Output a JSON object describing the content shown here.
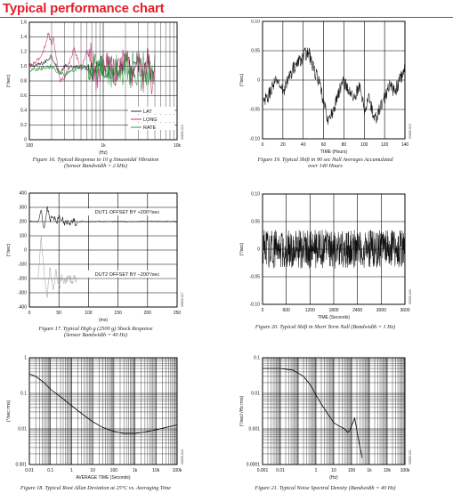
{
  "header": {
    "title": "Typical performance chart"
  },
  "chart_data": [
    {
      "id": "c16",
      "type": "line",
      "caption": "Figure 16. Typical Response to 10 g Sinusoidal Vibration\n(Sensor Bandwidth = 2 kHz)",
      "side_id": "05855-016",
      "xlabel": "(Hz)",
      "ylabel": "(°/sec)",
      "xscale": "log",
      "xlim": [
        100,
        10000
      ],
      "ylim": [
        0,
        1.6
      ],
      "xticks": [
        {
          "v": 100,
          "t": "100"
        },
        {
          "v": 1000,
          "t": "1k"
        },
        {
          "v": 10000,
          "t": "10k"
        }
      ],
      "yticks": [
        {
          "v": 0,
          "t": "0"
        },
        {
          "v": 0.2,
          "t": "0.2"
        },
        {
          "v": 0.4,
          "t": "0.4"
        },
        {
          "v": 0.6,
          "t": "0.6"
        },
        {
          "v": 0.8,
          "t": "0.8"
        },
        {
          "v": 1.0,
          "t": "1.0"
        },
        {
          "v": 1.2,
          "t": "1.2"
        },
        {
          "v": 1.4,
          "t": "1.4"
        },
        {
          "v": 1.6,
          "t": "1.6"
        }
      ],
      "grid": true,
      "legend_position": "lower-right",
      "series": [
        {
          "name": "LAT",
          "color": "#2f2f2f",
          "x": [
            100,
            130,
            160,
            180,
            200,
            230,
            260,
            300,
            400,
            500,
            700,
            1000,
            1500,
            2000,
            2500,
            3000,
            3500,
            4000,
            4500,
            5000
          ],
          "y": [
            1.0,
            1.02,
            1.05,
            1.1,
            1.15,
            1.0,
            0.9,
            1.0,
            0.98,
            1.0,
            0.95,
            1.02,
            0.9,
            1.05,
            0.85,
            1.1,
            0.8,
            1.12,
            0.82,
            1.0
          ]
        },
        {
          "name": "LONG",
          "color": "#c0306a",
          "x": [
            100,
            120,
            140,
            160,
            180,
            200,
            210,
            230,
            260,
            300,
            350,
            400,
            500,
            600,
            700,
            800,
            1000,
            1200,
            1500,
            2000,
            2500,
            3000,
            3500,
            4000,
            4500,
            5000
          ],
          "y": [
            1.0,
            1.05,
            1.12,
            1.25,
            1.45,
            1.3,
            1.4,
            1.15,
            0.8,
            0.85,
            1.05,
            1.25,
            0.95,
            1.2,
            1.15,
            0.85,
            1.0,
            1.1,
            0.9,
            1.15,
            0.85,
            1.15,
            0.8,
            1.1,
            0.75,
            0.95
          ]
        },
        {
          "name": "RATE",
          "color": "#2e9a45",
          "x": [
            100,
            150,
            200,
            250,
            300,
            400,
            500,
            700,
            1000,
            1300,
            1500,
            1800,
            2000,
            2300,
            2500,
            2800,
            3000,
            3300,
            3500,
            4000,
            4500,
            5000
          ],
          "y": [
            0.95,
            0.98,
            1.0,
            0.92,
            0.88,
            0.95,
            1.0,
            0.98,
            1.0,
            0.85,
            1.1,
            0.8,
            1.12,
            0.78,
            1.1,
            0.82,
            1.05,
            0.8,
            1.08,
            0.85,
            1.0,
            0.9
          ]
        }
      ]
    },
    {
      "id": "c19",
      "type": "line",
      "caption": "Figure 19. Typical Shift in 90 sec Null Averages Accumulated\nover 140 Hours",
      "side_id": "05855-019",
      "xlabel": "TIME (Hours)",
      "ylabel": "(°/sec)",
      "xlim": [
        0,
        140
      ],
      "ylim": [
        -0.1,
        0.1
      ],
      "xticks": [
        {
          "v": 0,
          "t": "0"
        },
        {
          "v": 20,
          "t": "20"
        },
        {
          "v": 40,
          "t": "40"
        },
        {
          "v": 60,
          "t": "60"
        },
        {
          "v": 80,
          "t": "80"
        },
        {
          "v": 100,
          "t": "100"
        },
        {
          "v": 120,
          "t": "120"
        },
        {
          "v": 140,
          "t": "140"
        }
      ],
      "yticks": [
        {
          "v": -0.1,
          "t": "-0.10"
        },
        {
          "v": -0.05,
          "t": "-0.05"
        },
        {
          "v": 0,
          "t": "0"
        },
        {
          "v": 0.05,
          "t": "0.05"
        },
        {
          "v": 0.1,
          "t": "0.10"
        }
      ],
      "grid": true,
      "series": [
        {
          "name": "",
          "color": "#111111",
          "x": [
            0,
            5,
            10,
            15,
            20,
            25,
            30,
            35,
            40,
            45,
            50,
            55,
            60,
            65,
            70,
            75,
            80,
            85,
            90,
            95,
            100,
            105,
            110,
            115,
            120,
            125,
            130,
            135,
            140
          ],
          "y": [
            -0.04,
            -0.03,
            -0.01,
            0.0,
            -0.02,
            0.0,
            0.02,
            0.03,
            0.04,
            0.05,
            0.02,
            0.0,
            -0.04,
            -0.07,
            -0.05,
            -0.02,
            0.0,
            -0.02,
            -0.03,
            -0.01,
            -0.05,
            -0.03,
            -0.07,
            -0.05,
            -0.03,
            -0.01,
            -0.02,
            0.0,
            0.02
          ]
        }
      ]
    },
    {
      "id": "c17",
      "type": "line",
      "caption": "Figure 17. Typical High g (2500 g) Shock Response\n(Sensor Bandwidth = 40 Hz)",
      "side_id": "05855-017",
      "xlabel": "(ms)",
      "ylabel": "(°/sec)",
      "xlim": [
        0,
        250
      ],
      "ylim": [
        -400,
        400
      ],
      "xticks": [
        {
          "v": 0,
          "t": "0"
        },
        {
          "v": 50,
          "t": "50"
        },
        {
          "v": 100,
          "t": "100"
        },
        {
          "v": 150,
          "t": "150"
        },
        {
          "v": 200,
          "t": "200"
        },
        {
          "v": 250,
          "t": "250"
        }
      ],
      "yticks": [
        {
          "v": -400,
          "t": "-400"
        },
        {
          "v": -300,
          "t": "-300"
        },
        {
          "v": -200,
          "t": "-200"
        },
        {
          "v": -100,
          "t": "-100"
        },
        {
          "v": 0,
          "t": "0"
        },
        {
          "v": 100,
          "t": "100"
        },
        {
          "v": 200,
          "t": "200"
        },
        {
          "v": 300,
          "t": "300"
        },
        {
          "v": 400,
          "t": "400"
        }
      ],
      "grid": true,
      "annotations": [
        "DUT1 OFFSET BY +200°/sec",
        "DUT2 OFFSET BY −200°/sec"
      ],
      "series": [
        {
          "name": "",
          "color": "#111111",
          "x": [
            0,
            15,
            20,
            25,
            30,
            35,
            40,
            45,
            50,
            55,
            60,
            70,
            80,
            250
          ],
          "y": [
            200,
            200,
            290,
            140,
            300,
            220,
            260,
            180,
            240,
            210,
            200,
            200,
            200,
            200
          ]
        },
        {
          "name": "",
          "color": "#a8a8a8",
          "x": [
            0,
            15,
            20,
            25,
            30,
            35,
            40,
            45,
            50,
            55,
            60,
            65,
            70,
            80,
            90,
            250
          ],
          "y": [
            -200,
            -200,
            100,
            -180,
            -320,
            -120,
            -280,
            -150,
            -260,
            -180,
            -230,
            -190,
            -210,
            -200,
            -200,
            -200
          ]
        }
      ]
    },
    {
      "id": "c20",
      "type": "line",
      "caption": "Figure 20. Typical Shift in Short Term Null (Bandwidth = 1 Hz)",
      "side_id": "05855-020",
      "xlabel": "TIME (Seconds)",
      "ylabel": "(°/sec)",
      "xlim": [
        0,
        3600
      ],
      "ylim": [
        -0.1,
        0.1
      ],
      "xticks": [
        {
          "v": 0,
          "t": "0"
        },
        {
          "v": 600,
          "t": "600"
        },
        {
          "v": 1200,
          "t": "1200"
        },
        {
          "v": 1800,
          "t": "1800"
        },
        {
          "v": 2400,
          "t": "2400"
        },
        {
          "v": 3000,
          "t": "3000"
        },
        {
          "v": 3600,
          "t": "3600"
        }
      ],
      "yticks": [
        {
          "v": -0.1,
          "t": "-0.10"
        },
        {
          "v": -0.05,
          "t": "-0.05"
        },
        {
          "v": 0,
          "t": "0"
        },
        {
          "v": 0.05,
          "t": "0.05"
        },
        {
          "v": 0.1,
          "t": "0.10"
        }
      ],
      "grid": true,
      "series": [
        {
          "name": "",
          "color": "#111111",
          "x": [
            0,
            3600
          ],
          "y": [
            0.0,
            0.0
          ]
        }
      ]
    },
    {
      "id": "c18",
      "type": "line",
      "caption": "Figure 18. Typical Root Allan Deviation at 25°C vs. Averaging Time",
      "side_id": "05855-018",
      "xlabel": "AVERAGE TIME (Seconds)",
      "ylabel": "(°/sec rms)",
      "xscale": "log",
      "yscale": "log",
      "xlim": [
        0.01,
        100000
      ],
      "ylim": [
        0.001,
        1
      ],
      "xticks": [
        {
          "v": 0.01,
          "t": "0.01"
        },
        {
          "v": 0.1,
          "t": "0.1"
        },
        {
          "v": 1,
          "t": "1"
        },
        {
          "v": 10,
          "t": "10"
        },
        {
          "v": 100,
          "t": "100"
        },
        {
          "v": 1000,
          "t": "1k"
        },
        {
          "v": 10000,
          "t": "10k"
        },
        {
          "v": 100000,
          "t": "100k"
        }
      ],
      "yticks": [
        {
          "v": 0.001,
          "t": "0.001"
        },
        {
          "v": 0.01,
          "t": "0.01"
        },
        {
          "v": 0.1,
          "t": "0.1"
        },
        {
          "v": 1,
          "t": "1"
        }
      ],
      "grid": true,
      "series": [
        {
          "name": "",
          "color": "#111111",
          "x": [
            0.01,
            0.02,
            0.05,
            0.1,
            0.3,
            1,
            3,
            10,
            30,
            100,
            300,
            1000,
            3000,
            10000,
            30000,
            100000
          ],
          "y": [
            0.35,
            0.3,
            0.2,
            0.13,
            0.08,
            0.045,
            0.027,
            0.016,
            0.011,
            0.0085,
            0.0075,
            0.0075,
            0.0082,
            0.0095,
            0.011,
            0.013
          ]
        }
      ]
    },
    {
      "id": "c21",
      "type": "line",
      "caption": "Figure 21. Typical Noise Spectral Density (Bandwidth = 40 Hz)",
      "side_id": "05855-021",
      "xlabel": "(Hz)",
      "ylabel": "(°/sec/√Hz rms)",
      "xscale": "log",
      "yscale": "log",
      "xlim": [
        0.001,
        100000
      ],
      "ylim": [
        0.0001,
        0.1
      ],
      "xticks": [
        {
          "v": 0.001,
          "t": "0.001"
        },
        {
          "v": 0.01,
          "t": "0.01"
        },
        {
          "v": 1,
          "t": "1"
        },
        {
          "v": 10,
          "t": "10"
        },
        {
          "v": 100,
          "t": "100"
        },
        {
          "v": 1000,
          "t": "1k"
        },
        {
          "v": 10000,
          "t": "10k"
        },
        {
          "v": 100000,
          "t": "100k"
        }
      ],
      "xtick_labels_display": [
        {
          "v": 0.001,
          "t": "0.001"
        },
        {
          "v": 0.01,
          "t": "0.01"
        },
        {
          "v": 1,
          "t": "1"
        },
        {
          "v": 10,
          "t": "10"
        },
        {
          "v": 100,
          "t": "100"
        },
        {
          "v": 1000,
          "t": "1k"
        },
        {
          "v": 10000,
          "t": "10k"
        },
        {
          "v": 100000,
          "t": "100k"
        }
      ],
      "yticks": [
        {
          "v": 0.0001,
          "t": "0.0001"
        },
        {
          "v": 0.001,
          "t": "0.001"
        },
        {
          "v": 0.01,
          "t": "0.01"
        },
        {
          "v": 0.1,
          "t": "0.1"
        }
      ],
      "grid": true,
      "series": [
        {
          "name": "",
          "color": "#111111",
          "x": [
            0.001,
            0.01,
            0.05,
            0.2,
            0.5,
            1,
            2,
            5,
            10,
            20,
            30,
            40,
            50,
            60,
            80,
            100,
            150,
            200,
            300,
            400
          ],
          "y": [
            0.05,
            0.05,
            0.045,
            0.03,
            0.017,
            0.009,
            0.005,
            0.0025,
            0.0015,
            0.0012,
            0.0011,
            0.001,
            0.0009,
            0.0008,
            0.0009,
            0.0012,
            0.002,
            0.0009,
            0.0003,
            0.00015
          ]
        }
      ]
    }
  ]
}
